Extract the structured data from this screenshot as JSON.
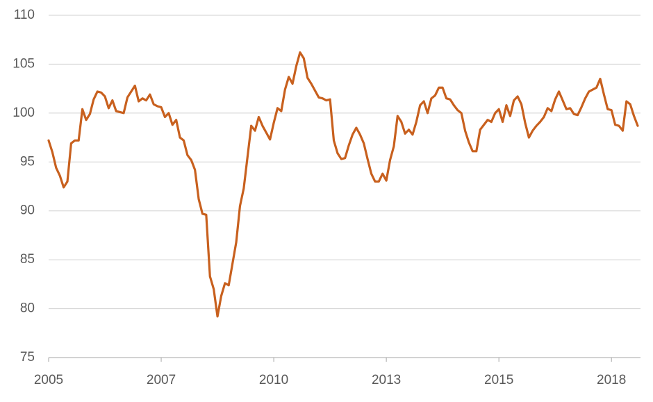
{
  "chart_data": {
    "type": "line",
    "categories": [
      "2005",
      null,
      null,
      null,
      null,
      null,
      null,
      null,
      null,
      null,
      null,
      null,
      null,
      null,
      null,
      null,
      null,
      null,
      null,
      null,
      null,
      null,
      null,
      null,
      null,
      null,
      null,
      null,
      null,
      null,
      "2007",
      null,
      null,
      null,
      null,
      null,
      null,
      null,
      null,
      null,
      null,
      null,
      null,
      null,
      null,
      null,
      null,
      null,
      null,
      null,
      null,
      null,
      null,
      null,
      null,
      null,
      null,
      null,
      null,
      null,
      "2010",
      null,
      null,
      null,
      null,
      null,
      null,
      null,
      null,
      null,
      null,
      null,
      null,
      null,
      null,
      null,
      null,
      null,
      null,
      null,
      null,
      null,
      null,
      null,
      null,
      null,
      null,
      null,
      null,
      null,
      "2013",
      null,
      null,
      null,
      null,
      null,
      null,
      null,
      null,
      null,
      null,
      null,
      null,
      null,
      null,
      null,
      null,
      null,
      null,
      null,
      null,
      null,
      null,
      null,
      null,
      null,
      null,
      null,
      null,
      null,
      "2015",
      null,
      null,
      null,
      null,
      null,
      null,
      null,
      null,
      null,
      null,
      null,
      null,
      null,
      null,
      null,
      null,
      null,
      null,
      null,
      null,
      null,
      null,
      null,
      null,
      null,
      null,
      null,
      null,
      null,
      "2018",
      null,
      null,
      null,
      null,
      null,
      null,
      null
    ],
    "series": [
      {
        "color": "#c8601e",
        "values": [
          97.2,
          96.0,
          94.4,
          93.6,
          92.4,
          93.0,
          96.9,
          97.2,
          97.2,
          100.4,
          99.3,
          99.9,
          101.4,
          102.2,
          102.1,
          101.7,
          100.5,
          101.3,
          100.2,
          100.1,
          100.0,
          101.6,
          102.2,
          102.8,
          101.2,
          101.5,
          101.3,
          101.9,
          100.9,
          100.7,
          100.6,
          99.6,
          100.0,
          98.8,
          99.3,
          97.5,
          97.2,
          95.7,
          95.2,
          94.2,
          91.2,
          89.7,
          89.6,
          83.3,
          82.0,
          79.2,
          81.3,
          82.6,
          82.4,
          84.6,
          86.8,
          90.5,
          92.3,
          95.5,
          98.7,
          98.2,
          99.6,
          98.7,
          98.0,
          97.3,
          99.0,
          100.5,
          100.2,
          102.4,
          103.7,
          103.0,
          104.8,
          106.2,
          105.6,
          103.6,
          103.0,
          102.3,
          101.6,
          101.5,
          101.3,
          101.4,
          97.2,
          95.9,
          95.3,
          95.4,
          96.7,
          97.8,
          98.5,
          97.8,
          96.9,
          95.3,
          93.8,
          93.0,
          93.0,
          93.8,
          93.1,
          95.2,
          96.6,
          99.7,
          99.1,
          97.9,
          98.3,
          97.8,
          99.1,
          100.8,
          101.2,
          100.0,
          101.5,
          101.8,
          102.6,
          102.6,
          101.5,
          101.4,
          100.8,
          100.3,
          100.0,
          98.2,
          97.0,
          96.1,
          96.1,
          98.3,
          98.8,
          99.3,
          99.1,
          100.0,
          100.4,
          99.1,
          100.8,
          99.7,
          101.3,
          101.7,
          100.9,
          99.0,
          97.5,
          98.2,
          98.7,
          99.1,
          99.6,
          100.5,
          100.2,
          101.4,
          102.2,
          101.3,
          100.4,
          100.5,
          99.9,
          99.8,
          100.6,
          101.5,
          102.2,
          102.4,
          102.6,
          103.5,
          101.9,
          100.4,
          100.3,
          98.8,
          98.7,
          98.2,
          101.2,
          100.9,
          99.7,
          98.7
        ]
      }
    ],
    "ylim": [
      75,
      110
    ],
    "yticks": [
      75,
      80,
      85,
      90,
      95,
      100,
      105,
      110
    ],
    "grid": true
  }
}
